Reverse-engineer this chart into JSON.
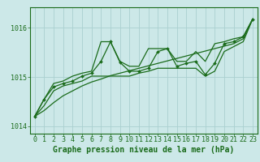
{
  "title": "Graphe pression niveau de la mer (hPa)",
  "bg_color": "#cce8e8",
  "grid_color": "#aad0d0",
  "line_color": "#1a6b1a",
  "x_values": [
    0,
    1,
    2,
    3,
    4,
    5,
    6,
    7,
    8,
    9,
    10,
    11,
    12,
    13,
    14,
    15,
    16,
    17,
    18,
    19,
    20,
    21,
    22,
    23
  ],
  "pressure_main": [
    1014.2,
    1014.55,
    1014.8,
    1014.87,
    1014.92,
    1015.02,
    1015.08,
    1015.32,
    1015.72,
    1015.3,
    1015.12,
    1015.12,
    1015.18,
    1015.52,
    1015.58,
    1015.22,
    1015.28,
    1015.32,
    1015.05,
    1015.28,
    1015.68,
    1015.72,
    1015.82,
    1016.18
  ],
  "pressure_min": [
    1014.2,
    1014.42,
    1014.72,
    1014.82,
    1014.87,
    1014.92,
    1015.02,
    1015.02,
    1015.02,
    1015.02,
    1015.02,
    1015.08,
    1015.12,
    1015.18,
    1015.18,
    1015.18,
    1015.18,
    1015.18,
    1015.02,
    1015.12,
    1015.52,
    1015.62,
    1015.72,
    1016.18
  ],
  "pressure_max": [
    1014.2,
    1014.55,
    1014.87,
    1014.92,
    1015.02,
    1015.08,
    1015.12,
    1015.72,
    1015.72,
    1015.32,
    1015.22,
    1015.22,
    1015.58,
    1015.58,
    1015.58,
    1015.32,
    1015.32,
    1015.52,
    1015.32,
    1015.68,
    1015.72,
    1015.78,
    1015.82,
    1016.18
  ],
  "trend_line": [
    1014.2,
    1014.32,
    1014.48,
    1014.62,
    1014.72,
    1014.82,
    1014.9,
    1014.96,
    1015.03,
    1015.08,
    1015.13,
    1015.18,
    1015.23,
    1015.28,
    1015.33,
    1015.38,
    1015.43,
    1015.48,
    1015.53,
    1015.58,
    1015.63,
    1015.68,
    1015.78,
    1016.18
  ],
  "ylim_min": 1013.85,
  "ylim_max": 1016.42,
  "yticks": [
    1014,
    1015,
    1016
  ],
  "font_color": "#1a6b1a",
  "font_size_tick": 6.0,
  "font_size_label": 7.0
}
